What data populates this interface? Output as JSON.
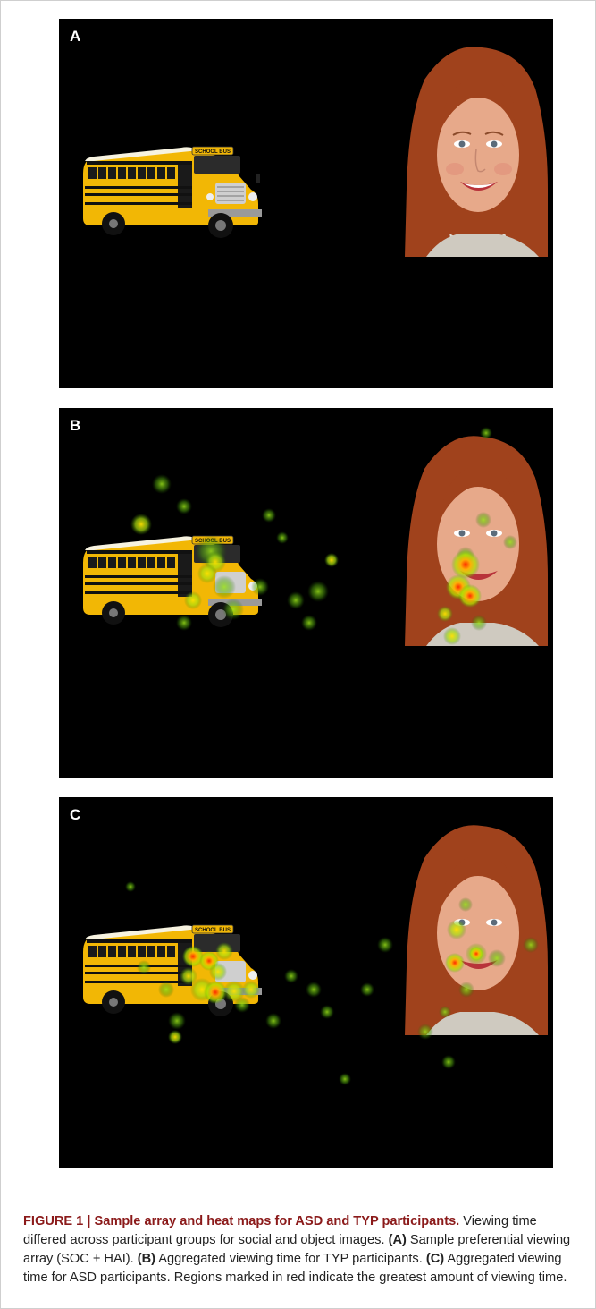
{
  "figure": {
    "panels": [
      {
        "label": "A"
      },
      {
        "label": "B"
      },
      {
        "label": "C"
      }
    ],
    "bus_sign": "SCHOOL BUS",
    "caption": {
      "title": "FIGURE 1 | Sample array and heat maps for ASD and TYP participants.",
      "line1": " Viewing time differed across participant groups for social and object images. ",
      "a_label": "(A)",
      "a_text": " Sample preferential viewing array (SOC + HAI). ",
      "b_label": "(B)",
      "b_text": " Aggregated viewing time for TYP participants. ",
      "c_label": "(C)",
      "c_text": " Aggregated viewing time for ASD participants. Regions marked in red indicate the greatest amount of viewing time."
    },
    "colors": {
      "background": "#000000",
      "bus_yellow": "#f2b705",
      "hair": "#a0421c",
      "skin": "#e7a98a",
      "heat_low": "#7fd41a",
      "heat_mid": "#ffe100",
      "heat_high": "#ff2a00",
      "title_red": "#8b1a1a"
    }
  }
}
